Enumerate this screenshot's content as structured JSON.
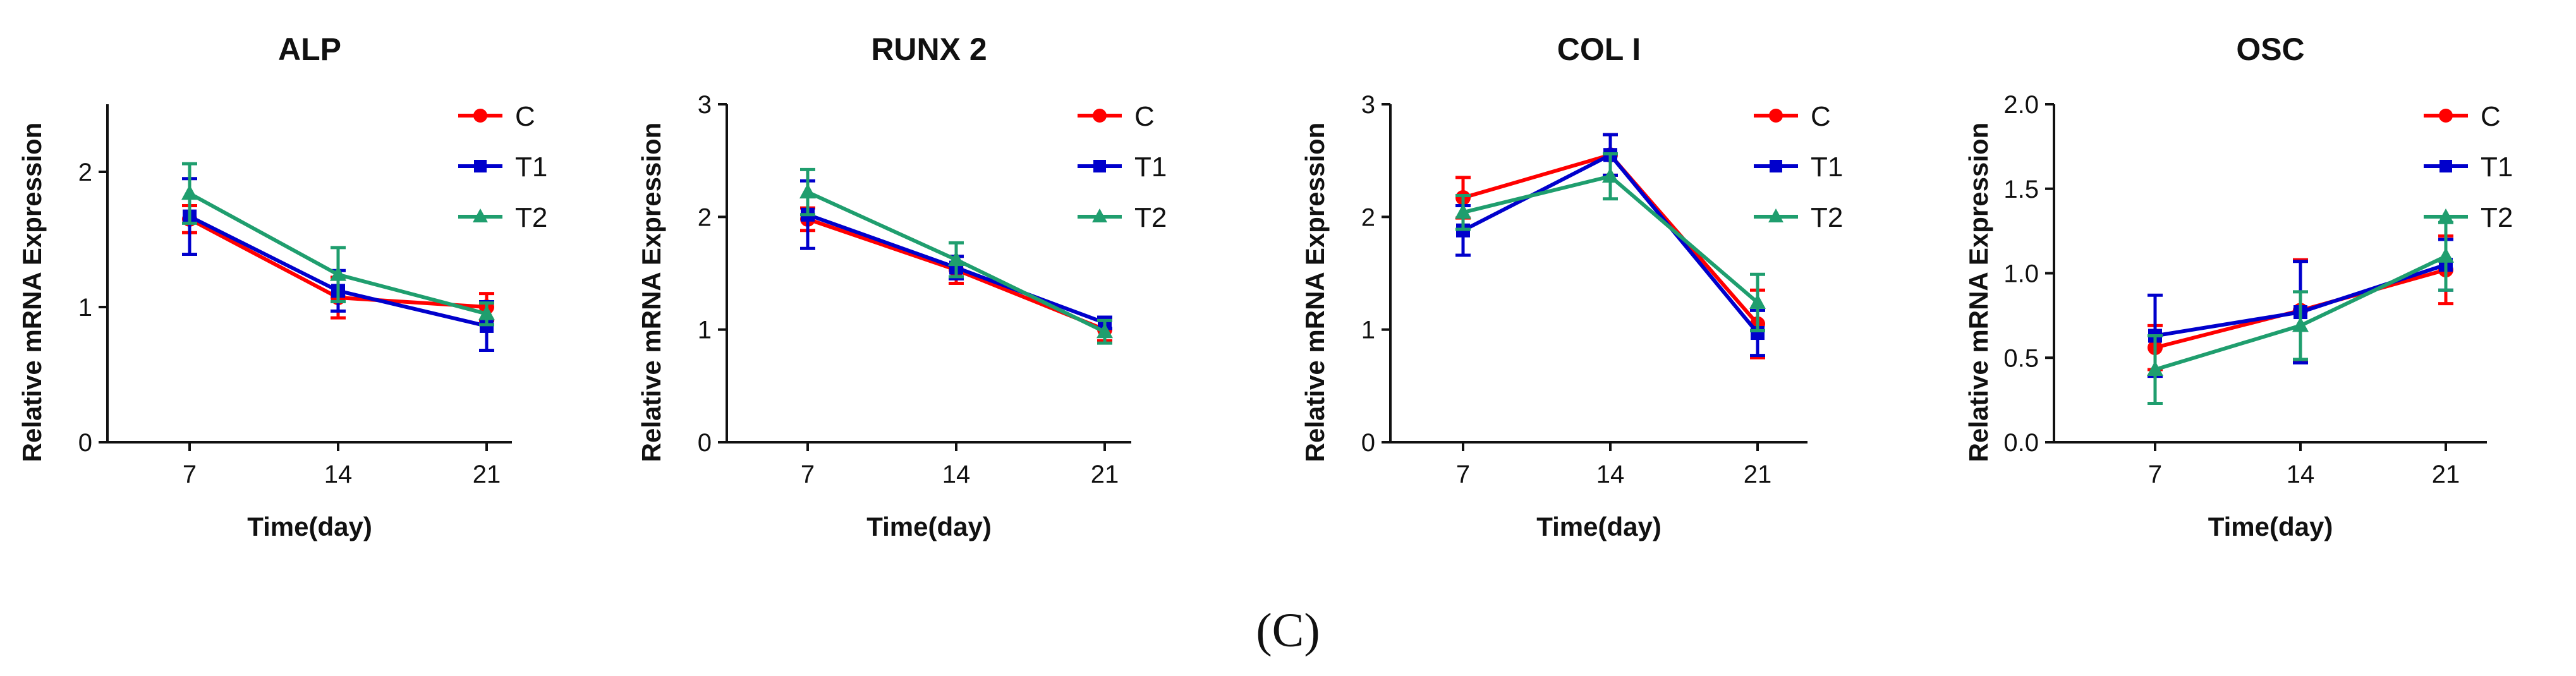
{
  "caption": "(C)",
  "chart_data": [
    {
      "type": "line",
      "title": "ALP",
      "xlabel": "Time(day)",
      "ylabel": "Relative mRNA Expression",
      "categories": [
        "7",
        "14",
        "21"
      ],
      "ylim": [
        0,
        2.5
      ],
      "yticks": [
        0,
        1,
        2
      ],
      "ytick_labels": [
        "0",
        "1",
        "2"
      ],
      "series": [
        {
          "name": "C",
          "color": "#ff0000",
          "marker": "circle",
          "values": [
            1.65,
            1.07,
            1.0
          ],
          "errors": [
            0.1,
            0.15,
            0.1
          ]
        },
        {
          "name": "T1",
          "color": "#0000cc",
          "marker": "square",
          "values": [
            1.67,
            1.12,
            0.86
          ],
          "errors": [
            0.28,
            0.15,
            0.18
          ]
        },
        {
          "name": "T2",
          "color": "#1f9e6e",
          "marker": "triangle",
          "values": [
            1.84,
            1.24,
            0.95
          ],
          "errors": [
            0.22,
            0.2,
            0.08
          ]
        }
      ]
    },
    {
      "type": "line",
      "title": "RUNX 2",
      "xlabel": "Time(day)",
      "ylabel": "Relative mRNA Expression",
      "categories": [
        "7",
        "14",
        "21"
      ],
      "ylim": [
        0,
        3
      ],
      "yticks": [
        0,
        1,
        2,
        3
      ],
      "ytick_labels": [
        "0",
        "1",
        "2",
        "3"
      ],
      "series": [
        {
          "name": "C",
          "color": "#ff0000",
          "marker": "circle",
          "values": [
            1.98,
            1.53,
            1.0
          ],
          "errors": [
            0.1,
            0.12,
            0.1
          ]
        },
        {
          "name": "T1",
          "color": "#0000cc",
          "marker": "square",
          "values": [
            2.02,
            1.55,
            1.06
          ],
          "errors": [
            0.3,
            0.1,
            0.05
          ]
        },
        {
          "name": "T2",
          "color": "#1f9e6e",
          "marker": "triangle",
          "values": [
            2.22,
            1.62,
            0.98
          ],
          "errors": [
            0.2,
            0.15,
            0.1
          ]
        }
      ]
    },
    {
      "type": "line",
      "title": "COL I",
      "xlabel": "Time(day)",
      "ylabel": "Relative mRNA Expression",
      "categories": [
        "7",
        "14",
        "21"
      ],
      "ylim": [
        0,
        3
      ],
      "yticks": [
        0,
        1,
        2,
        3
      ],
      "ytick_labels": [
        "0",
        "1",
        "2",
        "3"
      ],
      "series": [
        {
          "name": "C",
          "color": "#ff0000",
          "marker": "circle",
          "values": [
            2.17,
            2.55,
            1.05
          ],
          "errors": [
            0.18,
            0.18,
            0.3
          ]
        },
        {
          "name": "T1",
          "color": "#0000cc",
          "marker": "square",
          "values": [
            1.88,
            2.55,
            0.97
          ],
          "errors": [
            0.22,
            0.18,
            0.2
          ]
        },
        {
          "name": "T2",
          "color": "#1f9e6e",
          "marker": "triangle",
          "values": [
            2.04,
            2.36,
            1.24
          ],
          "errors": [
            0.15,
            0.2,
            0.25
          ]
        }
      ]
    },
    {
      "type": "line",
      "title": "OSC",
      "xlabel": "Time(day)",
      "ylabel": "Relative mRNA Expression",
      "categories": [
        "7",
        "14",
        "21"
      ],
      "ylim": [
        0,
        2.0
      ],
      "yticks": [
        0,
        0.5,
        1.0,
        1.5,
        2.0
      ],
      "ytick_labels": [
        "0.0",
        "0.5",
        "1.0",
        "1.5",
        "2.0"
      ],
      "series": [
        {
          "name": "C",
          "color": "#ff0000",
          "marker": "circle",
          "values": [
            0.56,
            0.78,
            1.02
          ],
          "errors": [
            0.13,
            0.3,
            0.2
          ]
        },
        {
          "name": "T1",
          "color": "#0000cc",
          "marker": "square",
          "values": [
            0.63,
            0.77,
            1.05
          ],
          "errors": [
            0.24,
            0.3,
            0.15
          ]
        },
        {
          "name": "T2",
          "color": "#1f9e6e",
          "marker": "triangle",
          "values": [
            0.43,
            0.69,
            1.1
          ],
          "errors": [
            0.2,
            0.2,
            0.2
          ]
        }
      ]
    }
  ]
}
